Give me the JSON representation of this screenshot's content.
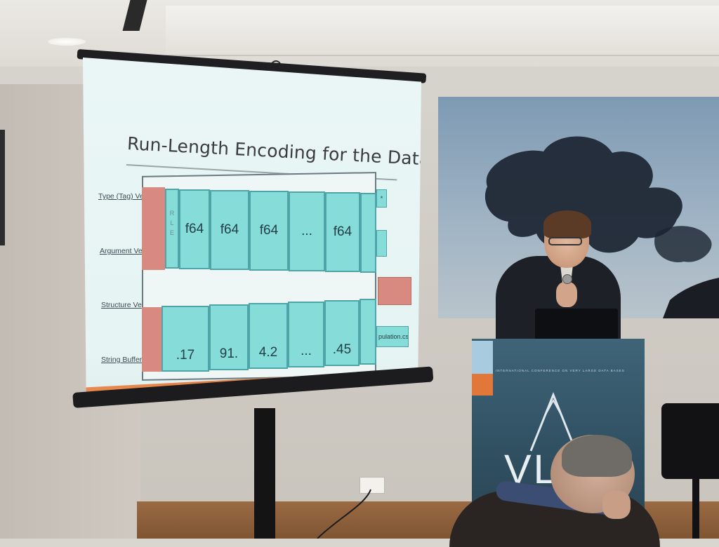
{
  "slide": {
    "title": "Run-Length Encoding for the Data Types",
    "row_labels": [
      "Type (Tag) Ve",
      "Argument Ve",
      "Structure Ve",
      "String Buffer"
    ],
    "rle_letters": [
      "R",
      "L",
      "E"
    ],
    "top_cells": [
      "f64",
      "f64",
      "f64",
      "...",
      "f64",
      ""
    ],
    "bottom_cells": [
      ".17",
      "91.",
      "4.2",
      "...",
      ".45",
      ""
    ],
    "side_file_label": "pulation.csv",
    "side_type_glyph": "*"
  },
  "podium": {
    "tagline": "INTERNATIONAL CONFERENCE ON VERY LARGE DATA BASES",
    "logo_text": "VLD"
  },
  "colors": {
    "cell_fill": "#86dcd9",
    "run_bar": "#d98a80",
    "slide_footer": "#e88a4f",
    "podium": "#2f4f60"
  }
}
